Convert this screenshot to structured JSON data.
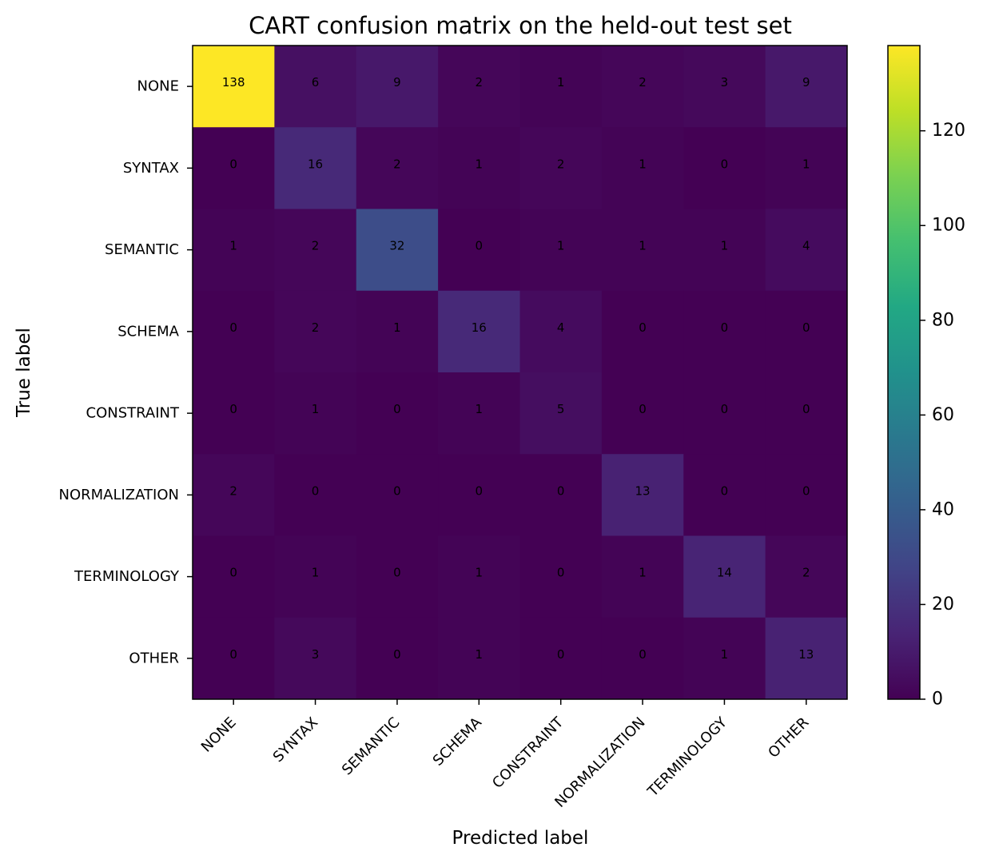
{
  "chart_data": {
    "type": "heatmap",
    "title": "CART confusion matrix on the held-out test set",
    "xlabel": "Predicted label",
    "ylabel": "True label",
    "x_categories": [
      "NONE",
      "SYNTAX",
      "SEMANTIC",
      "SCHEMA",
      "CONSTRAINT",
      "NORMALIZATION",
      "TERMINOLOGY",
      "OTHER"
    ],
    "y_categories": [
      "NONE",
      "SYNTAX",
      "SEMANTIC",
      "SCHEMA",
      "CONSTRAINT",
      "NORMALIZATION",
      "TERMINOLOGY",
      "OTHER"
    ],
    "values": [
      [
        138,
        6,
        9,
        2,
        1,
        2,
        3,
        9
      ],
      [
        0,
        16,
        2,
        1,
        2,
        1,
        0,
        1
      ],
      [
        1,
        2,
        32,
        0,
        1,
        1,
        1,
        4
      ],
      [
        0,
        2,
        1,
        16,
        4,
        0,
        0,
        0
      ],
      [
        0,
        1,
        0,
        1,
        5,
        0,
        0,
        0
      ],
      [
        2,
        0,
        0,
        0,
        0,
        13,
        0,
        0
      ],
      [
        0,
        1,
        0,
        1,
        0,
        1,
        14,
        2
      ],
      [
        0,
        3,
        0,
        1,
        0,
        0,
        1,
        13
      ]
    ],
    "colormap": "viridis",
    "colorbar": {
      "range": [
        0,
        138
      ],
      "ticks": [
        0,
        20,
        40,
        60,
        80,
        100,
        120
      ]
    },
    "colors": {
      "low": "#440154",
      "high": "#fde725",
      "text_on_dark": "#000000",
      "text_on_light": "#000000"
    },
    "grid": false,
    "legend": "colorbar-right"
  }
}
